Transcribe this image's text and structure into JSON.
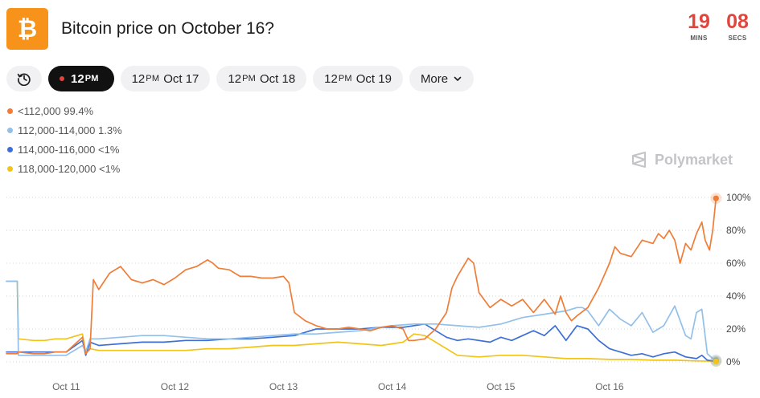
{
  "header": {
    "logo_icon": "bitcoin-icon",
    "logo_color": "#f7931a",
    "title": "Bitcoin price on October 16?",
    "countdown": {
      "mins_value": "19",
      "mins_label": "MINS",
      "secs_value": "08",
      "secs_label": "SECS"
    }
  },
  "tabs": {
    "history_icon": "clock-history-icon",
    "items": [
      {
        "time": "12",
        "suffix": "PM",
        "date": ""
      },
      {
        "time": "12",
        "suffix": "PM",
        "date": "Oct 17"
      },
      {
        "time": "12",
        "suffix": "PM",
        "date": "Oct 18"
      },
      {
        "time": "12",
        "suffix": "PM",
        "date": "Oct 19"
      }
    ],
    "more_label": "More"
  },
  "watermark": {
    "icon": "polymarket-icon",
    "text": "Polymarket"
  },
  "chart_data": {
    "type": "line",
    "x_unit": "days",
    "x_range": [
      10.45,
      17.0
    ],
    "ylim": [
      0,
      100
    ],
    "yticks": [
      0,
      20,
      40,
      60,
      80,
      100
    ],
    "ytick_labels": [
      "0%",
      "20%",
      "40%",
      "60%",
      "80%",
      "100%"
    ],
    "xticks": [
      {
        "pos": 11.0,
        "label": "Oct 11"
      },
      {
        "pos": 12.0,
        "label": "Oct 12"
      },
      {
        "pos": 13.0,
        "label": "Oct 13"
      },
      {
        "pos": 14.0,
        "label": "Oct 14"
      },
      {
        "pos": 15.0,
        "label": "Oct 15"
      },
      {
        "pos": 16.0,
        "label": "Oct 16"
      }
    ],
    "grid": "horizontal-dotted",
    "legend_position": "top-left",
    "series": [
      {
        "name": "<112,000",
        "value_label": "99.4%",
        "color": "#ef7d37",
        "x": [
          10.45,
          10.55,
          10.56,
          10.7,
          10.8,
          10.9,
          11.0,
          11.15,
          11.18,
          11.22,
          11.25,
          11.3,
          11.4,
          11.5,
          11.6,
          11.7,
          11.8,
          11.9,
          12.0,
          12.1,
          12.2,
          12.3,
          12.35,
          12.4,
          12.5,
          12.6,
          12.7,
          12.8,
          12.9,
          13.0,
          13.05,
          13.1,
          13.2,
          13.3,
          13.4,
          13.5,
          13.6,
          13.7,
          13.8,
          13.9,
          14.0,
          14.1,
          14.15,
          14.2,
          14.3,
          14.4,
          14.5,
          14.55,
          14.6,
          14.7,
          14.75,
          14.8,
          14.9,
          15.0,
          15.1,
          15.2,
          15.3,
          15.4,
          15.5,
          15.55,
          15.6,
          15.65,
          15.7,
          15.8,
          15.9,
          16.0,
          16.05,
          16.1,
          16.2,
          16.3,
          16.4,
          16.45,
          16.5,
          16.55,
          16.6,
          16.65,
          16.7,
          16.75,
          16.8,
          16.85,
          16.88,
          16.92,
          16.95,
          16.98
        ],
        "y": [
          5,
          5,
          6,
          5,
          5,
          6,
          6,
          15,
          5,
          8,
          50,
          44,
          54,
          58,
          50,
          48,
          50,
          47,
          51,
          56,
          58,
          62,
          60,
          57,
          56,
          52,
          52,
          51,
          51,
          52,
          48,
          30,
          25,
          22,
          20,
          20,
          21,
          20,
          19,
          21,
          22,
          20,
          13,
          13,
          14,
          20,
          30,
          45,
          52,
          63,
          60,
          42,
          33,
          38,
          34,
          38,
          30,
          38,
          29,
          40,
          30,
          25,
          28,
          33,
          45,
          60,
          70,
          66,
          64,
          74,
          72,
          78,
          75,
          80,
          74,
          60,
          72,
          68,
          78,
          85,
          74,
          68,
          80,
          99.4
        ]
      },
      {
        "name": "112,000-114,000",
        "value_label": "1.3%",
        "color": "#93c0ea",
        "x": [
          10.45,
          10.55,
          10.56,
          10.7,
          10.8,
          10.9,
          11.0,
          11.15,
          11.18,
          11.22,
          11.3,
          11.5,
          11.7,
          11.9,
          12.1,
          12.3,
          12.5,
          12.7,
          12.9,
          13.1,
          13.3,
          13.5,
          13.7,
          13.9,
          14.0,
          14.2,
          14.4,
          14.6,
          14.8,
          15.0,
          15.2,
          15.4,
          15.6,
          15.7,
          15.75,
          15.8,
          15.9,
          16.0,
          16.1,
          16.2,
          16.3,
          16.4,
          16.5,
          16.6,
          16.7,
          16.75,
          16.8,
          16.85,
          16.9,
          16.95,
          16.98
        ],
        "y": [
          49,
          49,
          4,
          4,
          4,
          4,
          4,
          10,
          6,
          14,
          14,
          15,
          16,
          16,
          15,
          14,
          14,
          15,
          16,
          17,
          17,
          18,
          19,
          21,
          22,
          23,
          23,
          22,
          21,
          23,
          27,
          29,
          31,
          33,
          33,
          31,
          22,
          32,
          26,
          22,
          30,
          18,
          22,
          34,
          16,
          14,
          30,
          32,
          5,
          2,
          1.3
        ]
      },
      {
        "name": "114,000-116,000",
        "value_label": "<1%",
        "color": "#3d6fd6",
        "x": [
          10.45,
          10.55,
          10.56,
          10.7,
          10.8,
          10.9,
          11.0,
          11.15,
          11.18,
          11.22,
          11.3,
          11.5,
          11.7,
          11.9,
          12.1,
          12.3,
          12.5,
          12.7,
          12.9,
          13.1,
          13.3,
          13.5,
          13.7,
          13.9,
          14.1,
          14.3,
          14.5,
          14.6,
          14.7,
          14.9,
          15.0,
          15.1,
          15.2,
          15.3,
          15.4,
          15.5,
          15.6,
          15.7,
          15.8,
          15.9,
          16.0,
          16.1,
          16.2,
          16.3,
          16.4,
          16.5,
          16.6,
          16.7,
          16.8,
          16.85,
          16.9,
          16.95,
          16.98
        ],
        "y": [
          6,
          6,
          6,
          6,
          6,
          6,
          6,
          13,
          4,
          12,
          10,
          11,
          12,
          12,
          13,
          13,
          14,
          14,
          15,
          16,
          20,
          20,
          20,
          21,
          21,
          23,
          15,
          13,
          14,
          12,
          15,
          13,
          16,
          19,
          16,
          22,
          13,
          22,
          20,
          13,
          8,
          6,
          4,
          5,
          3,
          5,
          6,
          3,
          2,
          4,
          1,
          0.6,
          0.5
        ]
      },
      {
        "name": "118,000-120,000",
        "value_label": "<1%",
        "color": "#f2c418",
        "x": [
          10.45,
          10.55,
          10.56,
          10.7,
          10.8,
          10.9,
          11.0,
          11.15,
          11.18,
          11.22,
          11.3,
          11.5,
          11.7,
          11.9,
          12.1,
          12.3,
          12.5,
          12.7,
          12.9,
          13.1,
          13.3,
          13.5,
          13.7,
          13.9,
          14.1,
          14.2,
          14.3,
          14.4,
          14.6,
          14.8,
          15.0,
          15.2,
          15.4,
          15.6,
          15.8,
          16.0,
          16.2,
          16.4,
          16.6,
          16.8,
          16.98
        ],
        "y": [
          49,
          49,
          14,
          13,
          13,
          14,
          14,
          17,
          5,
          8,
          7,
          7,
          7,
          7,
          7,
          8,
          8,
          9,
          10,
          10,
          11,
          12,
          11,
          10,
          12,
          17,
          16,
          12,
          4,
          3,
          4,
          4,
          3,
          2,
          2,
          1.5,
          1.5,
          1,
          1,
          0.6,
          0.4
        ]
      }
    ]
  }
}
